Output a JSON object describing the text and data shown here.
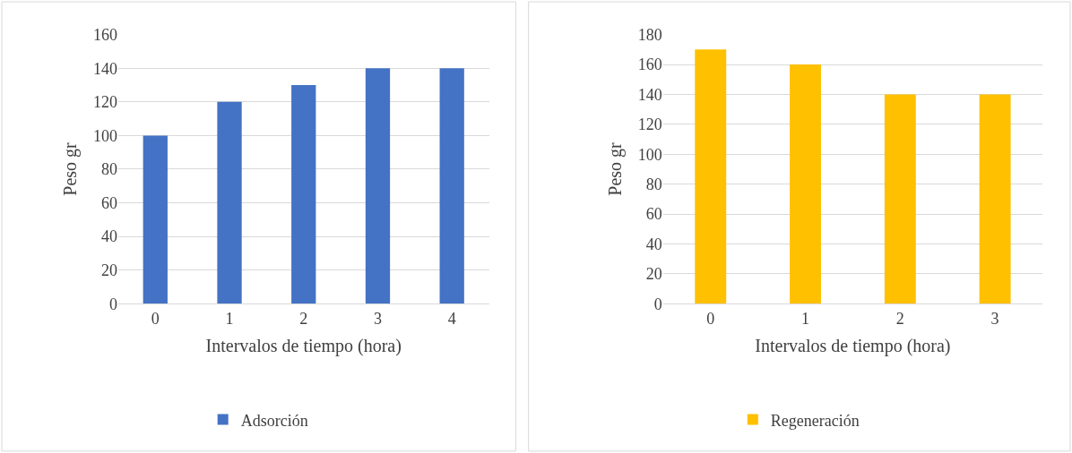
{
  "chart_data": [
    {
      "type": "bar",
      "xlabel": "Intervalos de tiempo (hora)",
      "ylabel": "Peso gr",
      "categories": [
        "0",
        "1",
        "2",
        "3",
        "4"
      ],
      "series": [
        {
          "name": "Adsorción",
          "color": "#4472c4",
          "values": [
            100,
            120,
            130,
            140,
            140
          ]
        }
      ],
      "ylim": [
        0,
        160
      ],
      "yticks": [
        0,
        20,
        40,
        60,
        80,
        100,
        120,
        140,
        160
      ],
      "grid": "y",
      "legend": "bottom"
    },
    {
      "type": "bar",
      "xlabel": "Intervalos de tiempo (hora)",
      "ylabel": "Peso gr",
      "categories": [
        "0",
        "1",
        "2",
        "3"
      ],
      "series": [
        {
          "name": "Regeneración",
          "color": "#ffc000",
          "values": [
            170,
            160,
            140,
            140
          ]
        }
      ],
      "ylim": [
        0,
        180
      ],
      "yticks": [
        0,
        20,
        40,
        60,
        80,
        100,
        120,
        140,
        160,
        180
      ],
      "grid": "y",
      "legend": "bottom"
    }
  ]
}
